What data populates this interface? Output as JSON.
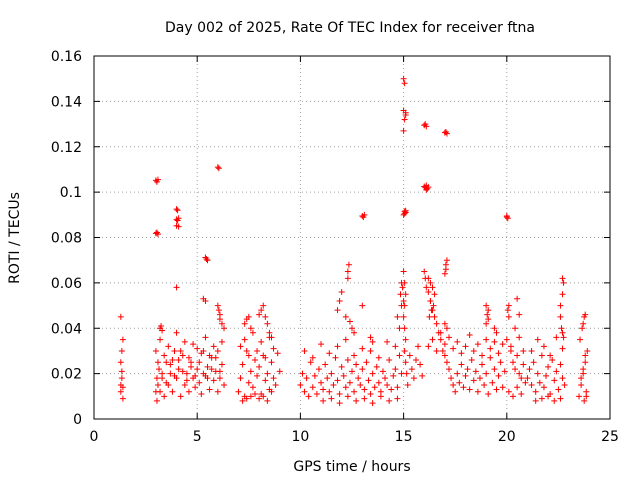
{
  "chart_data": {
    "type": "scatter",
    "title": "Day 002 of 2025, Rate Of TEC Index for receiver ftna",
    "xlabel": "GPS time / hours",
    "ylabel": "ROTI / TECUs",
    "xlim": [
      0,
      25
    ],
    "ylim": [
      0,
      0.16
    ],
    "xticks": [
      0,
      5,
      10,
      15,
      20,
      25
    ],
    "xtick_labels": [
      "0",
      "5",
      "10",
      "15",
      "20",
      "25"
    ],
    "yticks": [
      0,
      0.02,
      0.04,
      0.06,
      0.08,
      0.1,
      0.12,
      0.14,
      0.16
    ],
    "ytick_labels": [
      "0",
      "0.02",
      "0.04",
      "0.06",
      "0.08",
      "0.1",
      "0.12",
      "0.14",
      "0.16"
    ],
    "grid": true,
    "marker": "+",
    "color": "#ff0000",
    "series": [
      {
        "name": "ROTI",
        "x": [
          1.3,
          1.3,
          1.35,
          1.35,
          1.4,
          1.4,
          1.3,
          1.35,
          1.4,
          1.3,
          3.0,
          3.05,
          3.1,
          3.0,
          3.05,
          3.1,
          3.15,
          3.2,
          3.3,
          3.4,
          3.5,
          3.6,
          3.7,
          3.8,
          3.9,
          4.0,
          4.1,
          4.2,
          4.3,
          4.4,
          4.5,
          4.6,
          4.7,
          4.8,
          4.9,
          5.0,
          5.1,
          5.2,
          5.3,
          5.4,
          5.5,
          5.6,
          5.7,
          5.8,
          5.9,
          6.0,
          6.1,
          6.2,
          6.3,
          3.2,
          3.4,
          3.6,
          3.8,
          4.0,
          4.2,
          4.4,
          4.6,
          4.8,
          5.0,
          5.2,
          5.4,
          5.6,
          5.8,
          6.0,
          6.2,
          3.3,
          3.5,
          3.7,
          3.9,
          4.1,
          4.3,
          4.5,
          4.7,
          4.9,
          5.1,
          5.3,
          5.5,
          5.7,
          5.9,
          6.1,
          3.0,
          3.05,
          3.1,
          3.0,
          3.05,
          3.1,
          3.2,
          3.25,
          3.3,
          4.0,
          4.05,
          4.0,
          4.05,
          4.1,
          4.0,
          4.1,
          4.0,
          5.4,
          5.45,
          5.5,
          6.0,
          6.05,
          6.0,
          6.05,
          6.1,
          6.1,
          6.2,
          6.3,
          5.3,
          5.4,
          7.0,
          7.1,
          7.2,
          7.3,
          7.4,
          7.5,
          7.6,
          7.7,
          7.8,
          7.9,
          8.0,
          8.1,
          8.2,
          8.3,
          8.4,
          8.5,
          8.6,
          8.7,
          8.8,
          9.0,
          7.1,
          7.3,
          7.5,
          7.7,
          7.9,
          8.1,
          8.3,
          8.5,
          8.7,
          8.9,
          7.2,
          7.4,
          7.6,
          7.8,
          8.0,
          8.2,
          8.4,
          8.6,
          7.3,
          7.4,
          7.5,
          7.6,
          8.0,
          8.1,
          8.2,
          8.3,
          8.4,
          8.5,
          8.6,
          10.0,
          10.1,
          10.2,
          10.3,
          10.4,
          10.5,
          10.6,
          10.7,
          10.8,
          10.9,
          11.0,
          11.1,
          11.2,
          11.3,
          11.4,
          11.5,
          11.6,
          11.7,
          11.8,
          11.9,
          12.0,
          12.1,
          12.2,
          12.3,
          12.4,
          12.5,
          12.6,
          12.7,
          12.8,
          12.9,
          13.0,
          13.1,
          13.2,
          13.3,
          13.4,
          13.5,
          13.6,
          13.7,
          13.8,
          13.9,
          14.0,
          14.1,
          14.2,
          14.3,
          14.4,
          14.5,
          14.6,
          14.7,
          14.8,
          14.9,
          10.2,
          10.6,
          11.0,
          11.4,
          11.8,
          12.2,
          12.6,
          13.0,
          13.4,
          13.8,
          14.2,
          14.6,
          11.1,
          11.5,
          11.9,
          12.3,
          12.7,
          13.1,
          13.5,
          13.9,
          14.3,
          14.7,
          11.8,
          11.9,
          12.0,
          12.2,
          12.3,
          12.3,
          12.35,
          12.4,
          12.5,
          12.6,
          13.0,
          13.05,
          13.1,
          13.0,
          13.4,
          13.5,
          14.7,
          14.8,
          14.9,
          14.85,
          14.9,
          14.95,
          15.0,
          15.05,
          15.0,
          15.1,
          15.05,
          15.1,
          15.0,
          15.05,
          15.1,
          15.0,
          15.05,
          15.1,
          15.0,
          15.05,
          15.1,
          15.0,
          15.05,
          15.0,
          15.05,
          15.1,
          15.05,
          15.1,
          15.15,
          15.2,
          15.3,
          15.4,
          15.5,
          15.6,
          15.7,
          15.8,
          15.9,
          16.0,
          16.05,
          16.1,
          16.0,
          16.05,
          16.1,
          16.1,
          16.15,
          16.2,
          16.0,
          16.05,
          16.1,
          16.2,
          16.3,
          16.4,
          16.5,
          16.6,
          16.7,
          16.8,
          16.9,
          17.0,
          17.1,
          17.2,
          17.3,
          17.4,
          17.5,
          17.6,
          17.7,
          17.8,
          17.9,
          18.0,
          18.1,
          18.2,
          18.3,
          18.4,
          18.5,
          18.6,
          18.7,
          18.8,
          18.9,
          19.0,
          19.1,
          19.2,
          19.3,
          19.4,
          19.5,
          19.6,
          19.7,
          19.8,
          19.9,
          16.2,
          16.4,
          16.6,
          16.8,
          17.0,
          17.2,
          17.4,
          17.6,
          17.8,
          18.0,
          18.2,
          18.4,
          18.6,
          18.8,
          19.0,
          19.2,
          19.4,
          19.6,
          19.8,
          17.0,
          17.05,
          17.1,
          17.1,
          17.05,
          17.05,
          17.0,
          16.3,
          16.4,
          16.5,
          16.45,
          16.2,
          16.3,
          16.35,
          16.25,
          17.1,
          17.0,
          19.0,
          19.1,
          19.05,
          19.1,
          19.0,
          19.5,
          19.4,
          20.0,
          20.05,
          20.0,
          20.1,
          20.05,
          20.1,
          20.2,
          20.3,
          20.4,
          20.5,
          20.6,
          20.7,
          20.8,
          20.9,
          20.0,
          20.2,
          20.4,
          20.6,
          20.8,
          20.1,
          20.3,
          20.5,
          20.7,
          20.5,
          20.6,
          21.0,
          21.1,
          21.2,
          21.3,
          21.4,
          21.5,
          21.6,
          21.7,
          21.8,
          21.9,
          22.0,
          22.1,
          22.2,
          22.3,
          22.4,
          22.5,
          22.6,
          22.7,
          22.8,
          21.2,
          21.5,
          21.8,
          22.1,
          22.4,
          22.7,
          21.4,
          21.7,
          22.0,
          22.3,
          22.6,
          22.6,
          22.7,
          22.75,
          22.7,
          22.6,
          22.65,
          22.7,
          22.75,
          23.5,
          23.6,
          23.7,
          23.8,
          23.9,
          23.55,
          23.65,
          23.75,
          23.85,
          23.6,
          23.7,
          23.8,
          23.7,
          23.8,
          23.75,
          23.85
        ],
        "y": [
          0.012,
          0.015,
          0.018,
          0.021,
          0.014,
          0.009,
          0.025,
          0.03,
          0.035,
          0.045,
          0.012,
          0.018,
          0.025,
          0.03,
          0.008,
          0.015,
          0.022,
          0.012,
          0.018,
          0.01,
          0.025,
          0.015,
          0.02,
          0.012,
          0.03,
          0.018,
          0.022,
          0.01,
          0.028,
          0.015,
          0.02,
          0.012,
          0.025,
          0.018,
          0.014,
          0.022,
          0.016,
          0.011,
          0.03,
          0.019,
          0.023,
          0.013,
          0.027,
          0.017,
          0.021,
          0.012,
          0.018,
          0.024,
          0.015,
          0.035,
          0.028,
          0.032,
          0.026,
          0.038,
          0.03,
          0.034,
          0.027,
          0.033,
          0.031,
          0.029,
          0.036,
          0.028,
          0.032,
          0.03,
          0.034,
          0.02,
          0.016,
          0.024,
          0.019,
          0.026,
          0.021,
          0.017,
          0.023,
          0.019,
          0.025,
          0.02,
          0.018,
          0.022,
          0.027,
          0.021,
          0.1052,
          0.1045,
          0.1055,
          0.0818,
          0.0822,
          0.0815,
          0.04,
          0.041,
          0.039,
          0.0925,
          0.092,
          0.088,
          0.0875,
          0.0885,
          0.0852,
          0.0848,
          0.058,
          0.0712,
          0.0705,
          0.07,
          0.111,
          0.1105,
          0.05,
          0.048,
          0.046,
          0.044,
          0.042,
          0.04,
          0.053,
          0.052,
          0.012,
          0.018,
          0.024,
          0.01,
          0.03,
          0.016,
          0.021,
          0.014,
          0.026,
          0.019,
          0.023,
          0.011,
          0.028,
          0.017,
          0.02,
          0.013,
          0.025,
          0.018,
          0.015,
          0.021,
          0.032,
          0.035,
          0.028,
          0.038,
          0.03,
          0.034,
          0.027,
          0.036,
          0.031,
          0.029,
          0.008,
          0.009,
          0.01,
          0.011,
          0.009,
          0.01,
          0.008,
          0.012,
          0.042,
          0.044,
          0.045,
          0.04,
          0.046,
          0.048,
          0.05,
          0.045,
          0.042,
          0.038,
          0.036,
          0.015,
          0.02,
          0.012,
          0.018,
          0.01,
          0.025,
          0.014,
          0.019,
          0.011,
          0.022,
          0.016,
          0.013,
          0.024,
          0.018,
          0.012,
          0.02,
          0.015,
          0.027,
          0.017,
          0.011,
          0.023,
          0.019,
          0.014,
          0.026,
          0.016,
          0.021,
          0.012,
          0.024,
          0.018,
          0.015,
          0.022,
          0.013,
          0.025,
          0.017,
          0.011,
          0.02,
          0.014,
          0.023,
          0.016,
          0.012,
          0.021,
          0.018,
          0.015,
          0.026,
          0.013,
          0.019,
          0.022,
          0.014,
          0.028,
          0.02,
          0.03,
          0.027,
          0.033,
          0.029,
          0.032,
          0.035,
          0.028,
          0.031,
          0.03,
          0.027,
          0.034,
          0.032,
          0.008,
          0.009,
          0.007,
          0.01,
          0.008,
          0.009,
          0.007,
          0.01,
          0.008,
          0.009,
          0.048,
          0.052,
          0.056,
          0.045,
          0.065,
          0.062,
          0.068,
          0.043,
          0.04,
          0.038,
          0.0895,
          0.089,
          0.09,
          0.05,
          0.036,
          0.034,
          0.045,
          0.04,
          0.05,
          0.055,
          0.06,
          0.058,
          0.15,
          0.148,
          0.136,
          0.135,
          0.132,
          0.134,
          0.127,
          0.0915,
          0.091,
          0.09,
          0.0905,
          0.0918,
          0.065,
          0.06,
          0.055,
          0.052,
          0.05,
          0.045,
          0.04,
          0.035,
          0.03,
          0.025,
          0.02,
          0.015,
          0.028,
          0.022,
          0.018,
          0.026,
          0.032,
          0.024,
          0.019,
          0.1295,
          0.13,
          0.129,
          0.1025,
          0.102,
          0.103,
          0.101,
          0.1015,
          0.1022,
          0.065,
          0.062,
          0.058,
          0.056,
          0.052,
          0.048,
          0.045,
          0.042,
          0.038,
          0.035,
          0.03,
          0.028,
          0.025,
          0.022,
          0.018,
          0.015,
          0.012,
          0.02,
          0.016,
          0.024,
          0.014,
          0.019,
          0.022,
          0.013,
          0.026,
          0.017,
          0.021,
          0.012,
          0.018,
          0.024,
          0.015,
          0.02,
          0.011,
          0.027,
          0.016,
          0.022,
          0.013,
          0.019,
          0.025,
          0.014,
          0.021,
          0.032,
          0.035,
          0.03,
          0.038,
          0.033,
          0.036,
          0.031,
          0.034,
          0.029,
          0.032,
          0.037,
          0.03,
          0.033,
          0.028,
          0.035,
          0.031,
          0.034,
          0.029,
          0.033,
          0.1262,
          0.1265,
          0.1258,
          0.07,
          0.068,
          0.066,
          0.064,
          0.06,
          0.058,
          0.055,
          0.05,
          0.062,
          0.052,
          0.048,
          0.045,
          0.04,
          0.042,
          0.05,
          0.048,
          0.046,
          0.044,
          0.042,
          0.038,
          0.04,
          0.089,
          0.0885,
          0.0895,
          0.05,
          0.048,
          0.045,
          0.03,
          0.025,
          0.022,
          0.028,
          0.02,
          0.018,
          0.024,
          0.016,
          0.035,
          0.032,
          0.04,
          0.036,
          0.03,
          0.012,
          0.01,
          0.014,
          0.011,
          0.053,
          0.046,
          0.018,
          0.022,
          0.015,
          0.025,
          0.012,
          0.02,
          0.016,
          0.028,
          0.014,
          0.019,
          0.023,
          0.011,
          0.026,
          0.017,
          0.021,
          0.013,
          0.024,
          0.018,
          0.015,
          0.03,
          0.035,
          0.032,
          0.028,
          0.036,
          0.031,
          0.008,
          0.009,
          0.01,
          0.008,
          0.009,
          0.05,
          0.055,
          0.06,
          0.062,
          0.045,
          0.04,
          0.038,
          0.036,
          0.01,
          0.015,
          0.02,
          0.025,
          0.03,
          0.035,
          0.04,
          0.045,
          0.012,
          0.018,
          0.022,
          0.028,
          0.042,
          0.046,
          0.008,
          0.01
        ]
      }
    ]
  }
}
